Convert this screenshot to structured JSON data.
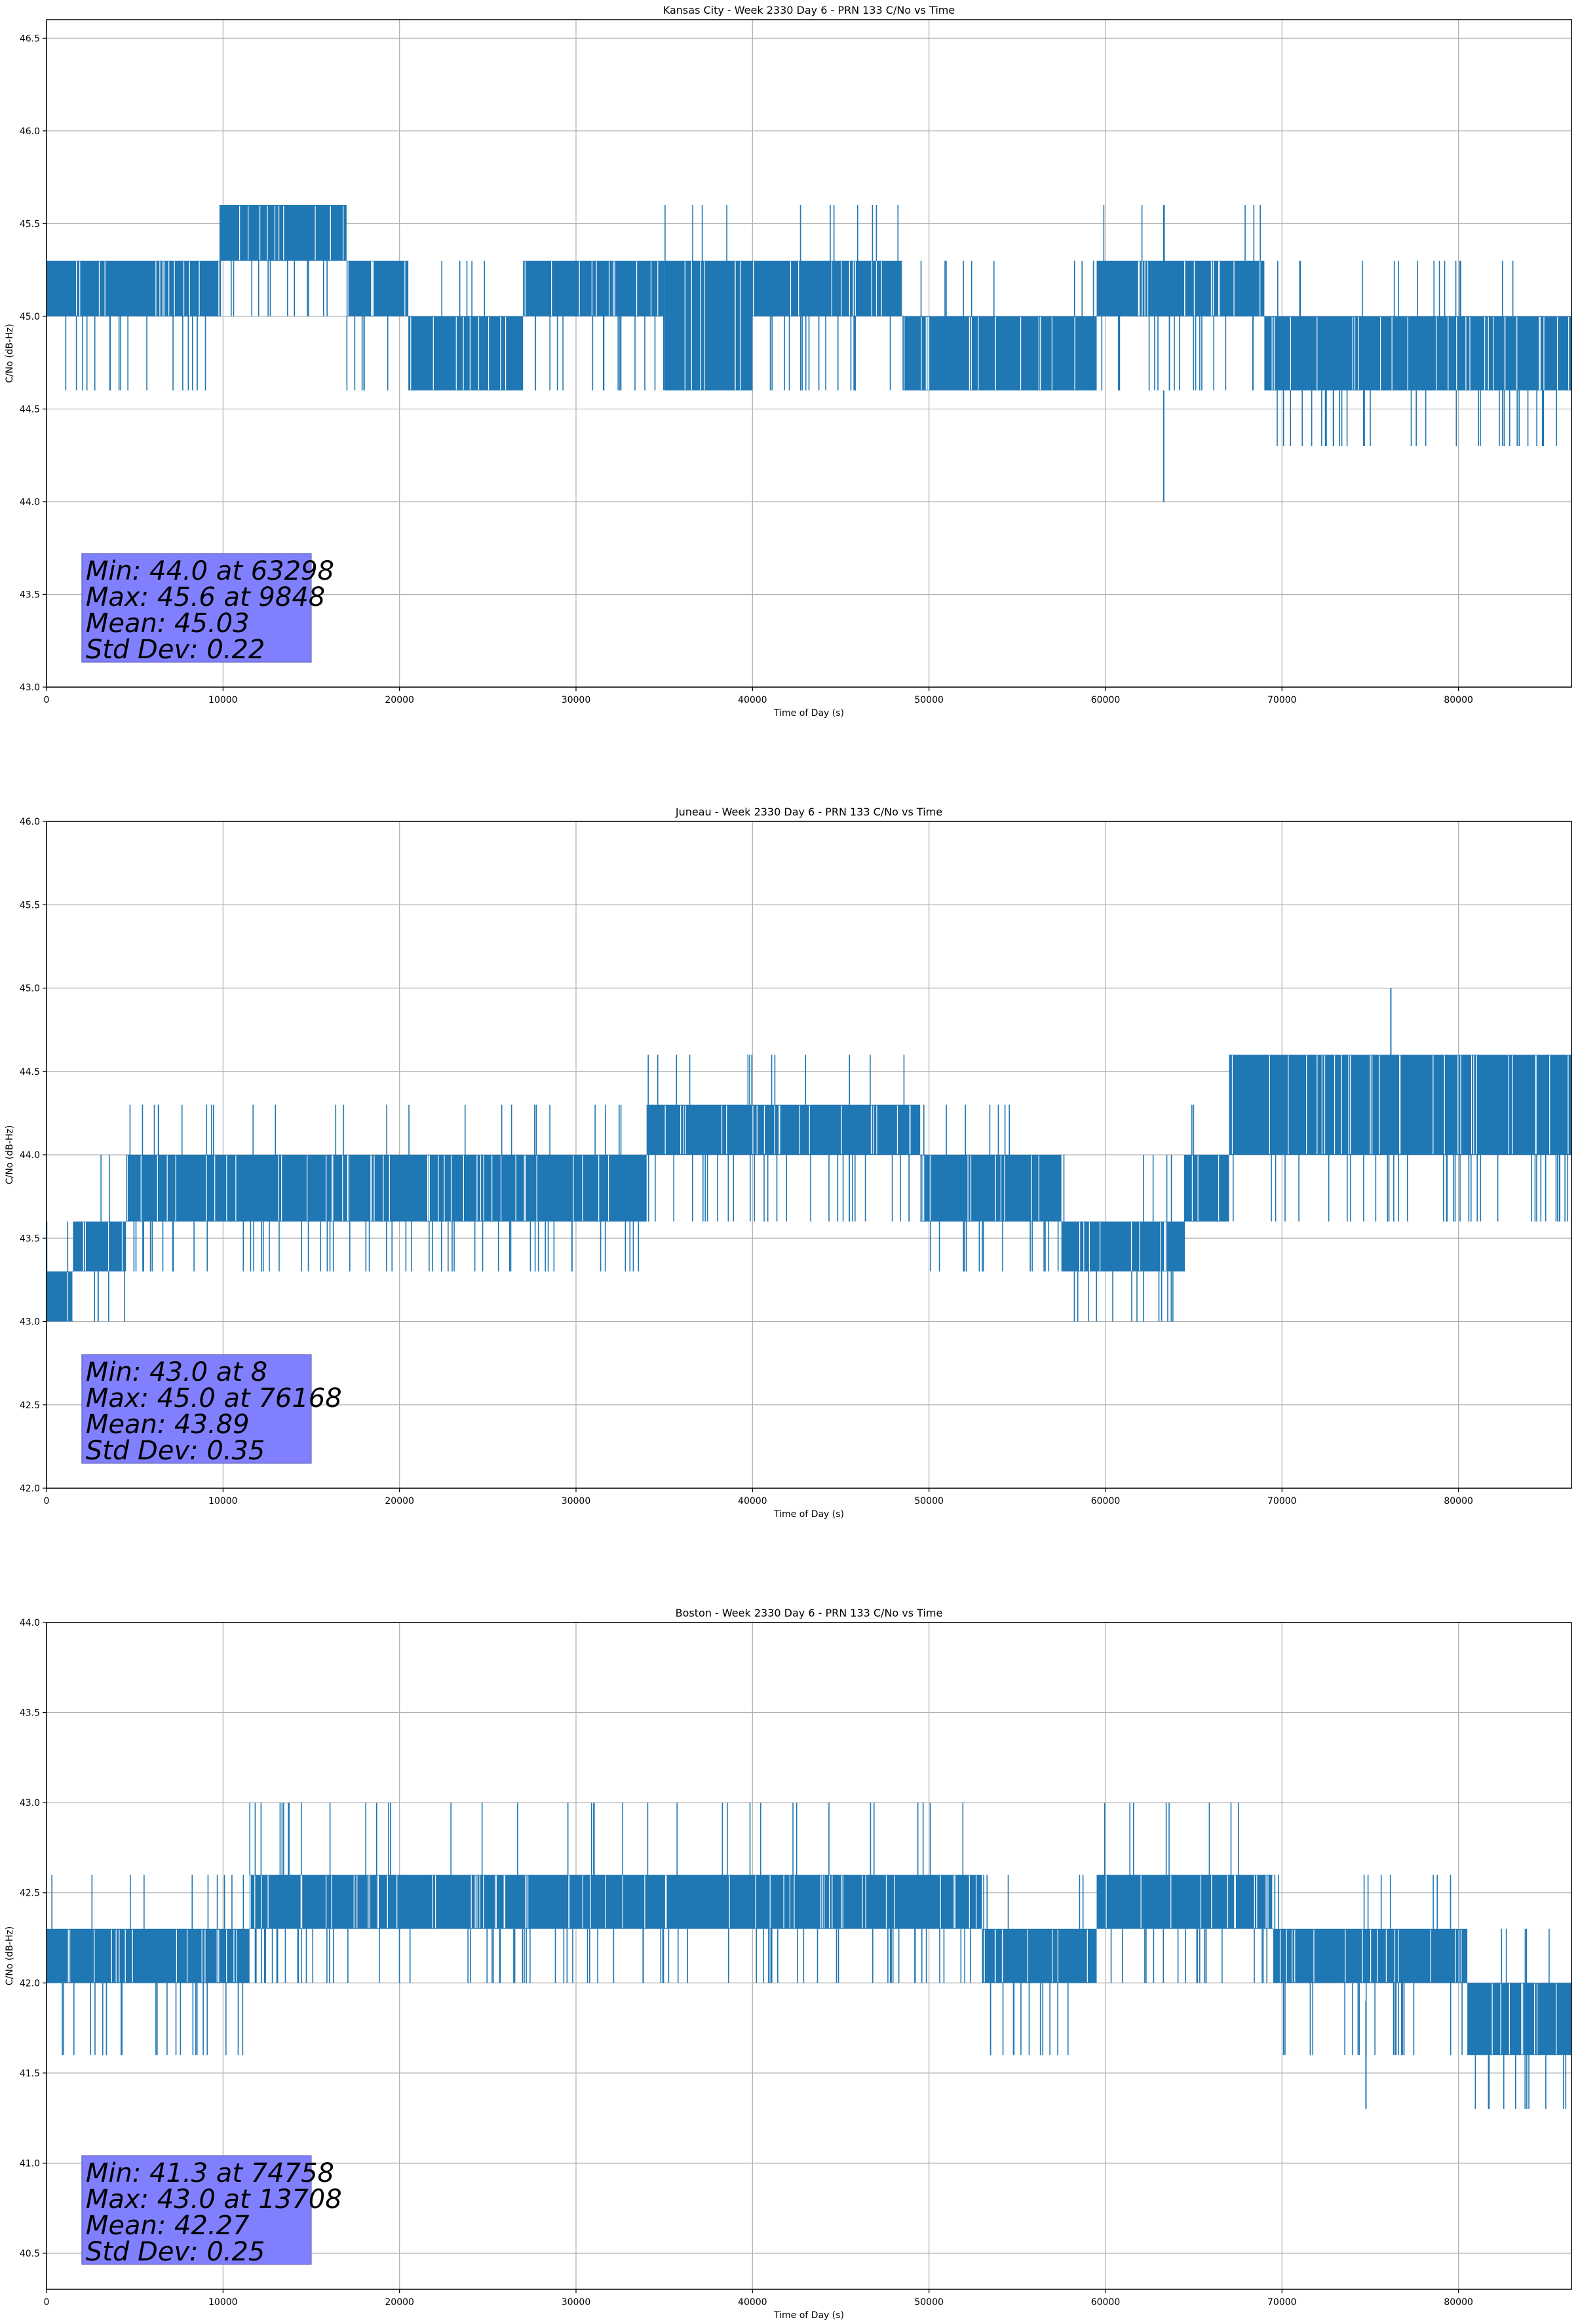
{
  "chart_data": [
    {
      "type": "line",
      "title": "Kansas City - Week 2330 Day 6 - PRN 133 C/No vs Time",
      "xlabel": "Time of Day (s)",
      "ylabel": "C/No (dB-Hz)",
      "xlim": [
        0,
        86400
      ],
      "ylim": [
        43.0,
        46.6
      ],
      "xticks": [
        0,
        10000,
        20000,
        30000,
        40000,
        50000,
        60000,
        70000,
        80000
      ],
      "yticks": [
        43.0,
        43.5,
        44.0,
        44.5,
        45.0,
        45.5,
        46.0,
        46.5
      ],
      "grid": true,
      "color": "#1f77b4",
      "stats": [
        "Min: 44.0 at 63298",
        "Max: 45.6 at 9848",
        "Mean: 45.03",
        "Std Dev: 0.22"
      ],
      "series": [
        {
          "min": 44.0,
          "min_at": 63298,
          "max": 45.6,
          "max_at": 9848,
          "segments": [
            {
              "x": [
                0,
                9800
              ],
              "values": [
                45.0,
                45.3
              ],
              "dips": [
                44.6
              ],
              "spikes": []
            },
            {
              "x": [
                9800,
                17000
              ],
              "values": [
                45.3,
                45.6
              ],
              "dips": [
                45.0
              ],
              "spikes": []
            },
            {
              "x": [
                17000,
                20500
              ],
              "values": [
                45.0,
                45.3
              ],
              "dips": [
                44.6
              ],
              "spikes": []
            },
            {
              "x": [
                20500,
                27000
              ],
              "values": [
                44.6,
                45.0
              ],
              "dips": [],
              "spikes": [
                45.3
              ]
            },
            {
              "x": [
                27000,
                35000
              ],
              "values": [
                45.0,
                45.3
              ],
              "dips": [
                44.6
              ],
              "spikes": []
            },
            {
              "x": [
                35000,
                40000
              ],
              "values": [
                44.6,
                45.3
              ],
              "dips": [],
              "spikes": [
                45.6
              ]
            },
            {
              "x": [
                40000,
                48500
              ],
              "values": [
                45.0,
                45.3
              ],
              "dips": [
                44.6
              ],
              "spikes": [
                45.6
              ]
            },
            {
              "x": [
                48500,
                59500
              ],
              "values": [
                44.6,
                45.0
              ],
              "dips": [],
              "spikes": [
                45.3
              ]
            },
            {
              "x": [
                59500,
                69000
              ],
              "values": [
                45.0,
                45.3
              ],
              "dips": [
                44.6
              ],
              "spikes": [
                45.6
              ]
            },
            {
              "x": [
                69000,
                86400
              ],
              "values": [
                44.6,
                45.0
              ],
              "dips": [
                44.3
              ],
              "spikes": [
                45.3
              ]
            }
          ]
        }
      ]
    },
    {
      "type": "line",
      "title": "Juneau - Week 2330 Day 6 - PRN 133 C/No vs Time",
      "xlabel": "Time of Day (s)",
      "ylabel": "C/No (dB-Hz)",
      "xlim": [
        0,
        86400
      ],
      "ylim": [
        42.0,
        46.0
      ],
      "xticks": [
        0,
        10000,
        20000,
        30000,
        40000,
        50000,
        60000,
        70000,
        80000
      ],
      "yticks": [
        42.0,
        42.5,
        43.0,
        43.5,
        44.0,
        44.5,
        45.0,
        45.5,
        46.0
      ],
      "grid": true,
      "color": "#1f77b4",
      "stats": [
        "Min: 43.0 at 8",
        "Max: 45.0 at 76168",
        "Mean: 43.89",
        "Std Dev: 0.35"
      ],
      "series": [
        {
          "min": 43.0,
          "min_at": 8,
          "max": 45.0,
          "max_at": 76168,
          "segments": [
            {
              "x": [
                0,
                1500
              ],
              "values": [
                43.0,
                43.3
              ],
              "dips": [],
              "spikes": [
                43.6
              ]
            },
            {
              "x": [
                1500,
                4500
              ],
              "values": [
                43.3,
                43.6
              ],
              "dips": [
                43.0
              ],
              "spikes": [
                44.0
              ]
            },
            {
              "x": [
                4500,
                22000
              ],
              "values": [
                43.6,
                44.0
              ],
              "dips": [
                43.3
              ],
              "spikes": [
                44.3
              ]
            },
            {
              "x": [
                22000,
                34000
              ],
              "values": [
                43.6,
                44.0
              ],
              "dips": [
                43.3
              ],
              "spikes": [
                44.3
              ]
            },
            {
              "x": [
                34000,
                49500
              ],
              "values": [
                44.0,
                44.3
              ],
              "dips": [
                43.6
              ],
              "spikes": [
                44.6
              ]
            },
            {
              "x": [
                49500,
                57500
              ],
              "values": [
                43.6,
                44.0
              ],
              "dips": [
                43.3
              ],
              "spikes": [
                44.3
              ]
            },
            {
              "x": [
                57500,
                64500
              ],
              "values": [
                43.3,
                43.6
              ],
              "dips": [
                43.0
              ],
              "spikes": [
                44.0
              ]
            },
            {
              "x": [
                64500,
                67000
              ],
              "values": [
                43.6,
                44.0
              ],
              "dips": [],
              "spikes": [
                44.3
              ]
            },
            {
              "x": [
                67000,
                86400
              ],
              "values": [
                44.0,
                44.6
              ],
              "dips": [
                43.6
              ],
              "spikes": [
                44.6
              ]
            }
          ]
        }
      ]
    },
    {
      "type": "line",
      "title": "Boston - Week 2330 Day 6 - PRN 133 C/No vs Time",
      "xlabel": "Time of Day (s)",
      "ylabel": "C/No (dB-Hz)",
      "xlim": [
        0,
        86400
      ],
      "ylim": [
        40.3,
        44.0
      ],
      "xticks": [
        0,
        10000,
        20000,
        30000,
        40000,
        50000,
        60000,
        70000,
        80000
      ],
      "yticks": [
        40.5,
        41.0,
        41.5,
        42.0,
        42.5,
        43.0,
        43.5,
        44.0
      ],
      "grid": true,
      "color": "#1f77b4",
      "stats": [
        "Min: 41.3 at 74758",
        "Max: 43.0 at 13708",
        "Mean: 42.27",
        "Std Dev: 0.25"
      ],
      "series": [
        {
          "min": 41.3,
          "min_at": 74758,
          "max": 43.0,
          "max_at": 13708,
          "segments": [
            {
              "x": [
                0,
                11500
              ],
              "values": [
                42.0,
                42.3
              ],
              "dips": [
                41.6
              ],
              "spikes": [
                42.6
              ]
            },
            {
              "x": [
                11500,
                38000
              ],
              "values": [
                42.3,
                42.6
              ],
              "dips": [
                42.0
              ],
              "spikes": [
                43.0
              ]
            },
            {
              "x": [
                38000,
                53000
              ],
              "values": [
                42.3,
                42.6
              ],
              "dips": [
                42.0
              ],
              "spikes": [
                43.0
              ]
            },
            {
              "x": [
                53000,
                59500
              ],
              "values": [
                42.0,
                42.3
              ],
              "dips": [
                41.6
              ],
              "spikes": [
                42.6
              ]
            },
            {
              "x": [
                59500,
                69500
              ],
              "values": [
                42.3,
                42.6
              ],
              "dips": [
                42.0
              ],
              "spikes": [
                43.0
              ]
            },
            {
              "x": [
                69500,
                80500
              ],
              "values": [
                42.0,
                42.3
              ],
              "dips": [
                41.6
              ],
              "spikes": [
                42.6
              ]
            },
            {
              "x": [
                80500,
                86400
              ],
              "values": [
                41.6,
                42.0
              ],
              "dips": [
                41.3
              ],
              "spikes": [
                42.3
              ]
            }
          ]
        }
      ]
    }
  ]
}
